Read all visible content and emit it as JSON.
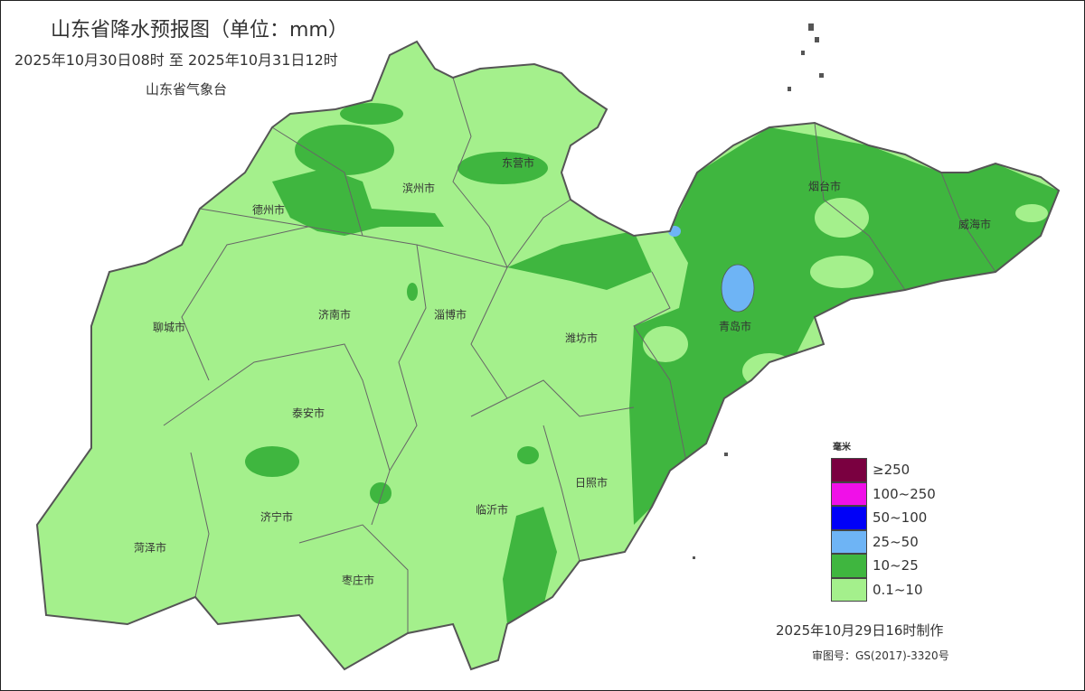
{
  "header": {
    "title": "山东省降水预报图（单位：mm）",
    "period": "2025年10月30日08时  至  2025年10月31日12时",
    "issuer": "山东省气象台"
  },
  "colors": {
    "light": "#a4f08c",
    "medium": "#3fb63f",
    "heavy": "#6eb4f5",
    "border": "#555555"
  },
  "cities": [
    "德州市",
    "滨州市",
    "东营市",
    "烟台市",
    "威海市",
    "聊城市",
    "济南市",
    "淄博市",
    "潍坊市",
    "青岛市",
    "泰安市",
    "日照市",
    "临沂市",
    "济宁市",
    "菏泽市",
    "枣庄市"
  ],
  "legend": {
    "unit": "毫米",
    "items": [
      {
        "label": "≥250",
        "color": "#7a0040"
      },
      {
        "label": "100~250",
        "color": "#f010e8"
      },
      {
        "label": "50~100",
        "color": "#0000f8"
      },
      {
        "label": "25~50",
        "color": "#6eb4f5"
      },
      {
        "label": "10~25",
        "color": "#3fb63f"
      },
      {
        "label": "0.1~10",
        "color": "#a4f08c"
      }
    ]
  },
  "footer": {
    "made": "2025年10月29日16时制作",
    "review": "审图号：GS(2017)-3320号"
  }
}
